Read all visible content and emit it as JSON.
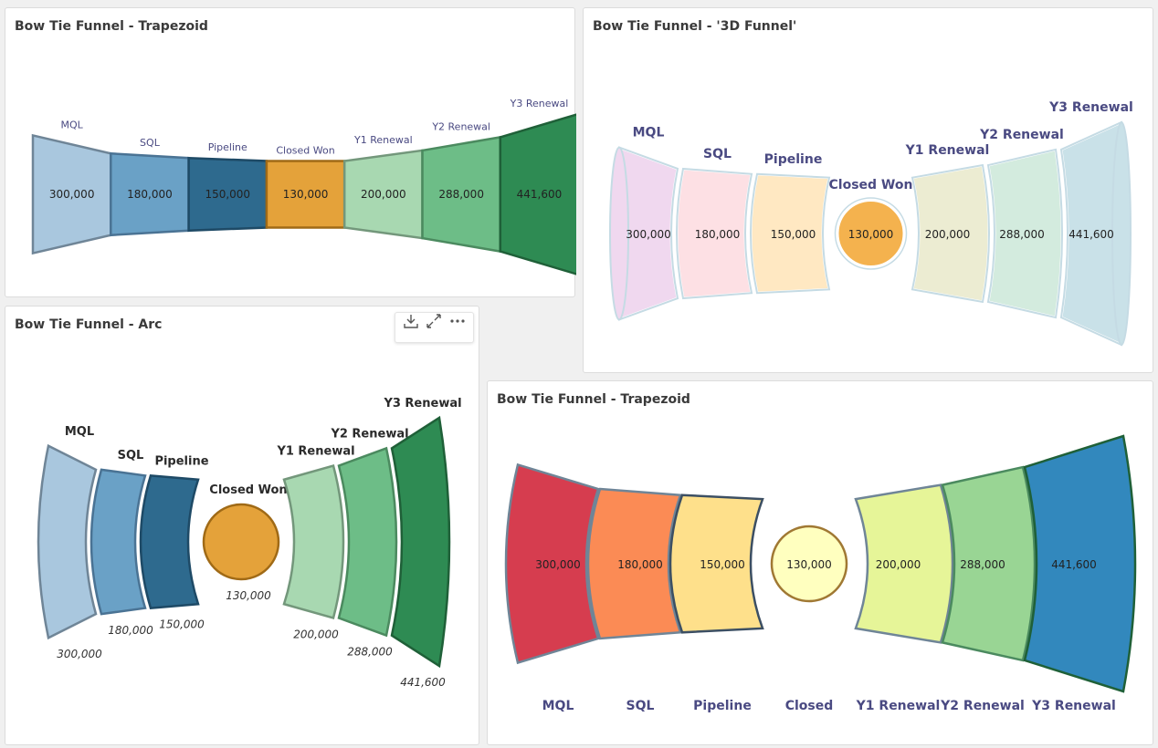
{
  "panels": {
    "p1": {
      "title": "Bow Tie Funnel - Trapezoid"
    },
    "p2": {
      "title": "Bow Tie Funnel - '3D Funnel'"
    },
    "p3": {
      "title": "Bow Tie Funnel - Arc"
    },
    "p4": {
      "title": "Bow Tie Funnel - Trapezoid"
    }
  },
  "toolbar": {
    "icons": [
      "download-icon",
      "expand-icon",
      "more-icon"
    ]
  },
  "chart_data": [
    {
      "type": "bowtie-funnel-trapezoid",
      "title": "Bow Tie Funnel - Trapezoid",
      "categories": [
        "MQL",
        "SQL",
        "Pipeline",
        "Closed Won",
        "Y1 Renewal",
        "Y2 Renewal",
        "Y3 Renewal"
      ],
      "values": [
        300000,
        180000,
        150000,
        130000,
        200000,
        288000,
        441600
      ],
      "value_labels": [
        "300,000",
        "180,000",
        "150,000",
        "130,000",
        "200,000",
        "288,000",
        "441,600"
      ],
      "colors": [
        "#a9c7de",
        "#6aa1c6",
        "#2e6a8e",
        "#e4a23a",
        "#a8d8b1",
        "#6dbd87",
        "#2e8b53"
      ],
      "strokes": [
        "#6f8597",
        "#4a7394",
        "#1e4a66",
        "#a06a16",
        "#73977b",
        "#4b8a5f",
        "#1f6038"
      ]
    },
    {
      "type": "bowtie-funnel-3d",
      "title": "Bow Tie Funnel - '3D Funnel'",
      "categories": [
        "MQL",
        "SQL",
        "Pipeline",
        "Closed Won",
        "Y1 Renewal",
        "Y2 Renewal",
        "Y3 Renewal"
      ],
      "values": [
        300000,
        180000,
        150000,
        130000,
        200000,
        288000,
        441600
      ],
      "value_labels": [
        "300,000",
        "180,000",
        "150,000",
        "130,000",
        "200,000",
        "288,000",
        "441,600"
      ],
      "colors": [
        "#f0d8ef",
        "#fde0e4",
        "#ffe8c2",
        "#f4b24e",
        "#ececd2",
        "#d3ebde",
        "#c9e1e8"
      ],
      "strokes": [
        "#c5dbe4",
        "#c5dbe4",
        "#c5dbe4",
        "#c5dbe4",
        "#c5dbe4",
        "#c5dbe4",
        "#c5dbe4"
      ]
    },
    {
      "type": "bowtie-funnel-arc",
      "title": "Bow Tie Funnel - Arc",
      "categories": [
        "MQL",
        "SQL",
        "Pipeline",
        "Closed Won",
        "Y1 Renewal",
        "Y2 Renewal",
        "Y3 Renewal"
      ],
      "values": [
        300000,
        180000,
        150000,
        130000,
        200000,
        288000,
        441600
      ],
      "value_labels": [
        "300,000",
        "180,000",
        "150,000",
        "130,000",
        "200,000",
        "288,000",
        "441,600"
      ],
      "colors": [
        "#a9c7de",
        "#6aa1c6",
        "#2e6a8e",
        "#e4a23a",
        "#a8d8b1",
        "#6dbd87",
        "#2e8b53"
      ],
      "strokes": [
        "#6f8597",
        "#4a7394",
        "#1e4a66",
        "#a06a16",
        "#73977b",
        "#4b8a5f",
        "#1f6038"
      ]
    },
    {
      "type": "bowtie-funnel-trapezoid",
      "title": "Bow Tie Funnel - Trapezoid",
      "categories": [
        "MQL",
        "SQL",
        "Pipeline",
        "Closed",
        "Y1 Renewal",
        "Y2 Renewal",
        "Y3 Renewal"
      ],
      "values": [
        300000,
        180000,
        150000,
        130000,
        200000,
        288000,
        441600
      ],
      "value_labels": [
        "300,000",
        "180,000",
        "150,000",
        "130,000",
        "200,000",
        "288,000",
        "441,600"
      ],
      "colors": [
        "#d63d4f",
        "#fb8b55",
        "#fee08b",
        "#ffffbf",
        "#e6f598",
        "#99d594",
        "#3288bd"
      ],
      "strokes": [
        "#6f8597",
        "#6f8597",
        "#3c4f63",
        "#a07833",
        "#6f8597",
        "#4b8a5f",
        "#1f6038"
      ]
    }
  ]
}
